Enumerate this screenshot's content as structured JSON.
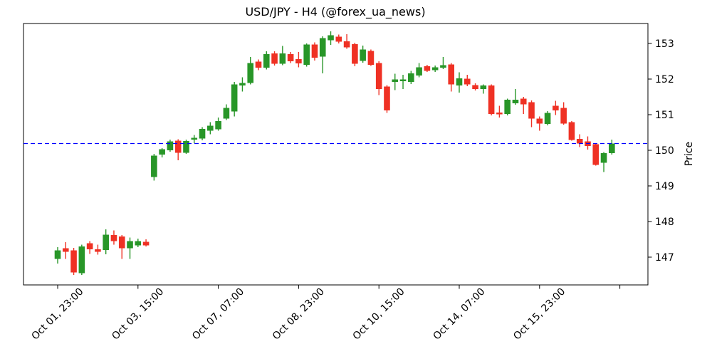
{
  "chart_data": {
    "type": "candlestick",
    "title": "USD/JPY - H4 (@forex_ua_news)",
    "instrument": "USD/JPY",
    "timeframe": "H4",
    "y_axis": {
      "label": "Price",
      "side": "right",
      "ticks": [
        147,
        148,
        149,
        150,
        151,
        152,
        153
      ],
      "range": [
        146.22,
        153.56
      ]
    },
    "x_axis": {
      "ticks": [
        {
          "index": 0,
          "label": "Oct 01, 23:00"
        },
        {
          "index": 10,
          "label": "Oct 03, 15:00"
        },
        {
          "index": 20,
          "label": "Oct 07, 07:00"
        },
        {
          "index": 30,
          "label": "Oct 08, 23:00"
        },
        {
          "index": 40,
          "label": "Oct 10, 15:00"
        },
        {
          "index": 50,
          "label": "Oct 14, 07:00"
        },
        {
          "index": 60,
          "label": "Oct 15, 23:00"
        },
        {
          "index": 70,
          "label": ""
        }
      ]
    },
    "hline": {
      "price": 150.19,
      "color": "#0000ff",
      "style": "dashed"
    },
    "colors": {
      "up": "#289628",
      "down": "#ef3124",
      "grid": "none",
      "spine": "#000000"
    },
    "grid": false,
    "legend": false,
    "candles": [
      {
        "o": 146.95,
        "h": 147.28,
        "l": 146.82,
        "c": 147.19
      },
      {
        "o": 147.25,
        "h": 147.42,
        "l": 146.95,
        "c": 147.15
      },
      {
        "o": 147.19,
        "h": 147.26,
        "l": 146.5,
        "c": 146.57
      },
      {
        "o": 146.55,
        "h": 147.35,
        "l": 146.5,
        "c": 147.3
      },
      {
        "o": 147.39,
        "h": 147.45,
        "l": 147.09,
        "c": 147.22
      },
      {
        "o": 147.22,
        "h": 147.35,
        "l": 147.07,
        "c": 147.15
      },
      {
        "o": 147.2,
        "h": 147.78,
        "l": 147.08,
        "c": 147.63
      },
      {
        "o": 147.62,
        "h": 147.75,
        "l": 147.35,
        "c": 147.45
      },
      {
        "o": 147.58,
        "h": 147.62,
        "l": 146.95,
        "c": 147.25
      },
      {
        "o": 147.25,
        "h": 147.55,
        "l": 146.95,
        "c": 147.45
      },
      {
        "o": 147.33,
        "h": 147.52,
        "l": 147.28,
        "c": 147.45
      },
      {
        "o": 147.43,
        "h": 147.5,
        "l": 147.3,
        "c": 147.33
      },
      {
        "o": 149.25,
        "h": 149.9,
        "l": 149.15,
        "c": 149.85
      },
      {
        "o": 149.88,
        "h": 150.06,
        "l": 149.8,
        "c": 150.03
      },
      {
        "o": 150.0,
        "h": 150.3,
        "l": 149.96,
        "c": 150.25
      },
      {
        "o": 150.27,
        "h": 150.31,
        "l": 149.72,
        "c": 149.93
      },
      {
        "o": 149.93,
        "h": 150.3,
        "l": 149.9,
        "c": 150.26
      },
      {
        "o": 150.3,
        "h": 150.43,
        "l": 150.2,
        "c": 150.35
      },
      {
        "o": 150.33,
        "h": 150.65,
        "l": 150.28,
        "c": 150.6
      },
      {
        "o": 150.55,
        "h": 150.79,
        "l": 150.45,
        "c": 150.69
      },
      {
        "o": 150.59,
        "h": 150.92,
        "l": 150.55,
        "c": 150.82
      },
      {
        "o": 150.89,
        "h": 151.29,
        "l": 150.85,
        "c": 151.19
      },
      {
        "o": 151.09,
        "h": 151.92,
        "l": 150.95,
        "c": 151.85
      },
      {
        "o": 151.82,
        "h": 152.05,
        "l": 151.65,
        "c": 151.89
      },
      {
        "o": 151.89,
        "h": 152.62,
        "l": 151.85,
        "c": 152.45
      },
      {
        "o": 152.49,
        "h": 152.55,
        "l": 152.25,
        "c": 152.32
      },
      {
        "o": 152.32,
        "h": 152.78,
        "l": 152.27,
        "c": 152.7
      },
      {
        "o": 152.72,
        "h": 152.78,
        "l": 152.38,
        "c": 152.43
      },
      {
        "o": 152.43,
        "h": 152.93,
        "l": 152.39,
        "c": 152.72
      },
      {
        "o": 152.7,
        "h": 152.76,
        "l": 152.45,
        "c": 152.5
      },
      {
        "o": 152.56,
        "h": 152.76,
        "l": 152.33,
        "c": 152.44
      },
      {
        "o": 152.4,
        "h": 153.0,
        "l": 152.35,
        "c": 152.97
      },
      {
        "o": 152.97,
        "h": 153.03,
        "l": 152.52,
        "c": 152.6
      },
      {
        "o": 152.63,
        "h": 153.2,
        "l": 152.16,
        "c": 153.15
      },
      {
        "o": 153.09,
        "h": 153.34,
        "l": 152.96,
        "c": 153.23
      },
      {
        "o": 153.19,
        "h": 153.25,
        "l": 153.0,
        "c": 153.05
      },
      {
        "o": 153.06,
        "h": 153.26,
        "l": 152.85,
        "c": 152.89
      },
      {
        "o": 152.98,
        "h": 153.02,
        "l": 152.36,
        "c": 152.43
      },
      {
        "o": 152.51,
        "h": 152.94,
        "l": 152.46,
        "c": 152.83
      },
      {
        "o": 152.79,
        "h": 152.83,
        "l": 152.37,
        "c": 152.4
      },
      {
        "o": 152.45,
        "h": 152.5,
        "l": 151.55,
        "c": 151.72
      },
      {
        "o": 151.79,
        "h": 151.83,
        "l": 151.05,
        "c": 151.12
      },
      {
        "o": 151.92,
        "h": 152.15,
        "l": 151.69,
        "c": 151.99
      },
      {
        "o": 151.94,
        "h": 152.12,
        "l": 151.72,
        "c": 151.99
      },
      {
        "o": 151.92,
        "h": 152.23,
        "l": 151.86,
        "c": 152.16
      },
      {
        "o": 152.1,
        "h": 152.45,
        "l": 152.05,
        "c": 152.33
      },
      {
        "o": 152.36,
        "h": 152.4,
        "l": 152.2,
        "c": 152.23
      },
      {
        "o": 152.25,
        "h": 152.38,
        "l": 152.2,
        "c": 152.33
      },
      {
        "o": 152.32,
        "h": 152.62,
        "l": 152.28,
        "c": 152.39
      },
      {
        "o": 152.41,
        "h": 152.45,
        "l": 151.65,
        "c": 151.85
      },
      {
        "o": 151.82,
        "h": 152.19,
        "l": 151.62,
        "c": 152.02
      },
      {
        "o": 152.01,
        "h": 152.12,
        "l": 151.8,
        "c": 151.85
      },
      {
        "o": 151.83,
        "h": 151.88,
        "l": 151.68,
        "c": 151.72
      },
      {
        "o": 151.72,
        "h": 151.85,
        "l": 151.59,
        "c": 151.82
      },
      {
        "o": 151.82,
        "h": 151.85,
        "l": 150.98,
        "c": 151.02
      },
      {
        "o": 151.06,
        "h": 151.25,
        "l": 150.92,
        "c": 151.01
      },
      {
        "o": 151.02,
        "h": 151.45,
        "l": 150.98,
        "c": 151.42
      },
      {
        "o": 151.32,
        "h": 151.72,
        "l": 151.28,
        "c": 151.42
      },
      {
        "o": 151.45,
        "h": 151.5,
        "l": 151.02,
        "c": 151.29
      },
      {
        "o": 151.35,
        "h": 151.4,
        "l": 150.65,
        "c": 150.89
      },
      {
        "o": 150.89,
        "h": 150.95,
        "l": 150.55,
        "c": 150.75
      },
      {
        "o": 150.74,
        "h": 151.1,
        "l": 150.7,
        "c": 151.05
      },
      {
        "o": 151.25,
        "h": 151.39,
        "l": 150.99,
        "c": 151.12
      },
      {
        "o": 151.19,
        "h": 151.35,
        "l": 150.72,
        "c": 150.75
      },
      {
        "o": 150.79,
        "h": 150.82,
        "l": 150.27,
        "c": 150.29
      },
      {
        "o": 150.32,
        "h": 150.45,
        "l": 150.09,
        "c": 150.19
      },
      {
        "o": 150.25,
        "h": 150.39,
        "l": 150.02,
        "c": 150.12
      },
      {
        "o": 150.17,
        "h": 150.2,
        "l": 149.57,
        "c": 149.59
      },
      {
        "o": 149.65,
        "h": 149.95,
        "l": 149.39,
        "c": 149.92
      },
      {
        "o": 149.92,
        "h": 150.3,
        "l": 149.88,
        "c": 150.19
      }
    ]
  }
}
